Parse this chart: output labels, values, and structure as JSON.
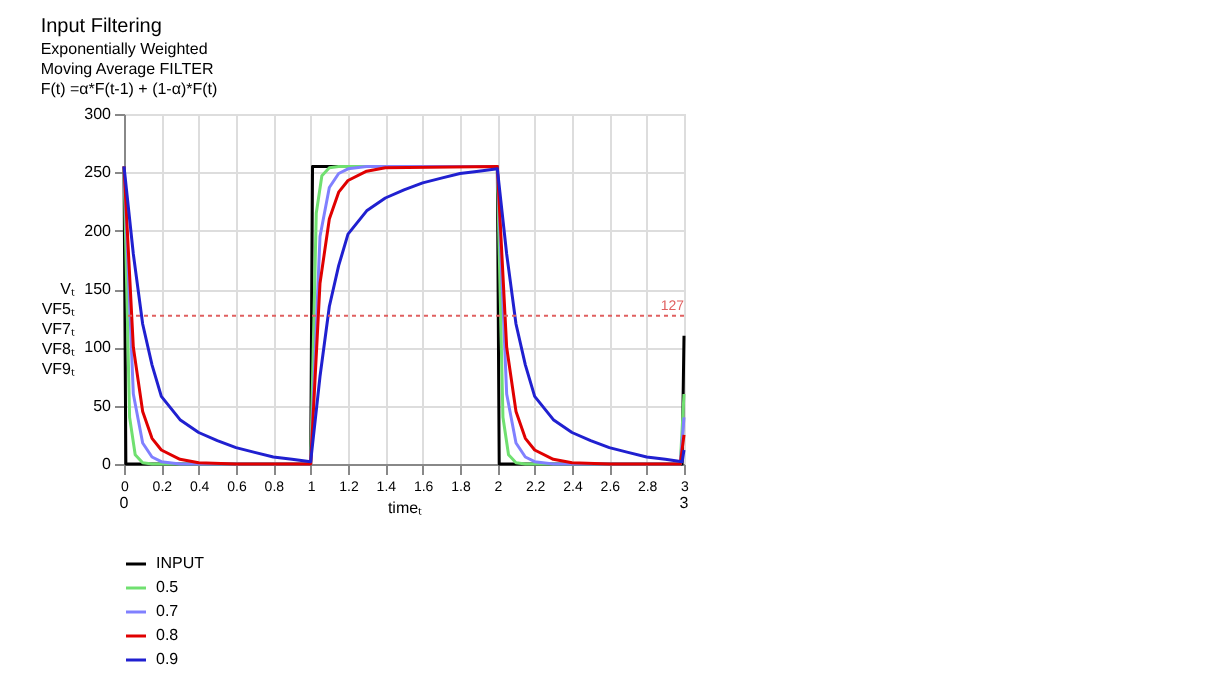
{
  "chart_data": {
    "type": "line",
    "title": "Input Filtering",
    "subtitle": "Exponentially Weighted\nMoving Average FILTER\nF(t) =α*F(t-1) + (1-α)*F(t)",
    "xlabel": "timeₜ",
    "ylabel": "Vₜ\nVF5ₜ\nVF7ₜ\nVF8ₜ\nVF9ₜ",
    "xlim": [
      0,
      3
    ],
    "xticks": [
      0,
      0.2,
      0.4,
      0.6,
      0.8,
      1,
      1.2,
      1.4,
      1.6,
      1.8,
      2,
      2.2,
      2.4,
      2.6,
      2.8,
      3
    ],
    "ylim": [
      0,
      300
    ],
    "yticks": [
      0,
      50,
      100,
      150,
      200,
      250,
      300
    ],
    "grid": true,
    "legend": "bottom left",
    "line_style": "solid",
    "ref_lines": [
      {
        "axis": "y",
        "value": 127,
        "label": "127",
        "color": "#e06060",
        "line_style": "dotted"
      }
    ],
    "annotations": [
      "0",
      "3"
    ],
    "series": [
      {
        "name": "INPUT",
        "color": "#000000",
        "x": [
          0,
          0.01,
          1,
          1.01,
          2,
          2.01,
          2.99,
          3
        ],
        "values": [
          255,
          0,
          0,
          255,
          255,
          0,
          0,
          110
        ]
      },
      {
        "name": "0.5",
        "color": "#70e070",
        "x": [
          0,
          0.03,
          0.06,
          0.1,
          0.15,
          1,
          1.03,
          1.06,
          1.1,
          1.15,
          2,
          2.03,
          2.06,
          2.1,
          2.15,
          2.98,
          3
        ],
        "values": [
          255,
          40,
          8,
          1,
          0,
          0,
          215,
          247,
          254,
          255,
          255,
          40,
          8,
          1,
          0,
          0,
          60
        ]
      },
      {
        "name": "0.7",
        "color": "#8080ff",
        "x": [
          0,
          0.05,
          0.1,
          0.15,
          0.2,
          0.3,
          1,
          1.05,
          1.1,
          1.15,
          1.2,
          1.3,
          2,
          2.05,
          2.1,
          2.15,
          2.2,
          2.3,
          2.98,
          3
        ],
        "values": [
          255,
          60,
          18,
          6,
          2,
          0,
          0,
          195,
          237,
          249,
          253,
          255,
          255,
          60,
          18,
          6,
          2,
          0,
          0,
          40
        ]
      },
      {
        "name": "0.8",
        "color": "#e00000",
        "x": [
          0,
          0.05,
          0.1,
          0.15,
          0.2,
          0.3,
          0.4,
          0.6,
          1,
          1.05,
          1.1,
          1.15,
          1.2,
          1.3,
          1.4,
          2,
          2.05,
          2.1,
          2.15,
          2.2,
          2.3,
          2.4,
          2.6,
          2.98,
          3
        ],
        "values": [
          255,
          100,
          45,
          22,
          12,
          4,
          1,
          0,
          0,
          155,
          210,
          233,
          243,
          251,
          254,
          255,
          100,
          45,
          22,
          12,
          4,
          1,
          0,
          0,
          25
        ]
      },
      {
        "name": "0.9",
        "color": "#2020d0",
        "x": [
          0,
          0.05,
          0.1,
          0.15,
          0.2,
          0.3,
          0.4,
          0.5,
          0.6,
          0.7,
          0.8,
          0.9,
          1,
          1.05,
          1.1,
          1.15,
          1.2,
          1.3,
          1.4,
          1.5,
          1.6,
          1.7,
          1.8,
          1.9,
          2,
          2.05,
          2.1,
          2.15,
          2.2,
          2.3,
          2.4,
          2.5,
          2.6,
          2.7,
          2.8,
          2.9,
          2.99,
          3
        ],
        "values": [
          255,
          180,
          120,
          85,
          58,
          38,
          27,
          20,
          14,
          10,
          6,
          4,
          2,
          75,
          135,
          170,
          197,
          217,
          228,
          235,
          241,
          245,
          249,
          251,
          253,
          180,
          120,
          85,
          58,
          38,
          27,
          20,
          14,
          10,
          6,
          4,
          2,
          12
        ]
      }
    ]
  }
}
